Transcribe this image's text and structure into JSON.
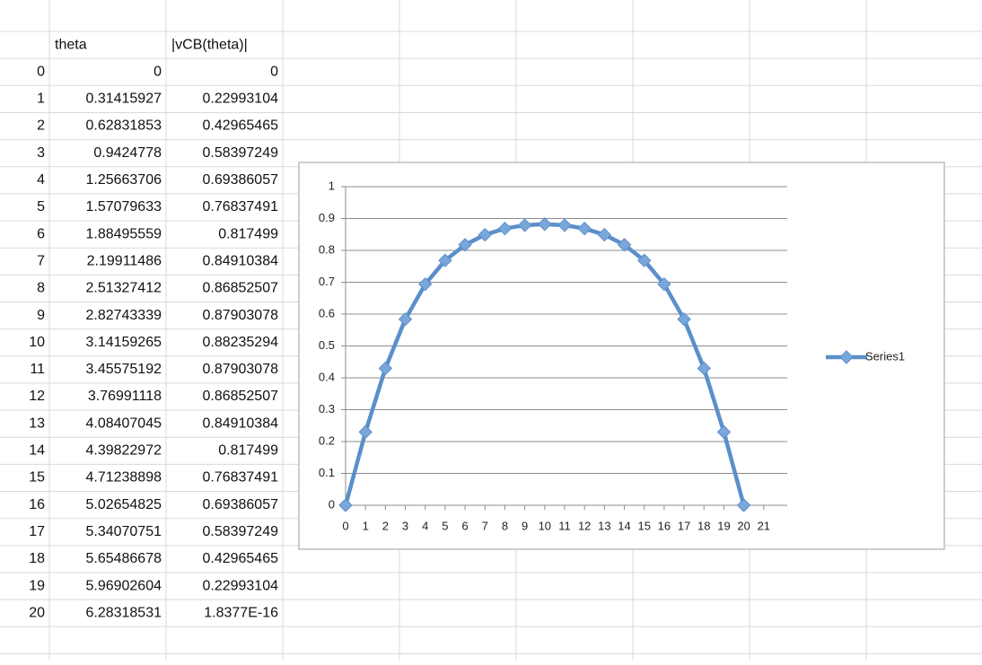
{
  "table": {
    "header": [
      "theta",
      "|vCB(theta)|"
    ],
    "rows": [
      [
        "0",
        "0",
        "0"
      ],
      [
        "1",
        "0.31415927",
        "0.22993104"
      ],
      [
        "2",
        "0.62831853",
        "0.42965465"
      ],
      [
        "3",
        "0.9424778",
        "0.58397249"
      ],
      [
        "4",
        "1.25663706",
        "0.69386057"
      ],
      [
        "5",
        "1.57079633",
        "0.76837491"
      ],
      [
        "6",
        "1.88495559",
        "0.817499"
      ],
      [
        "7",
        "2.19911486",
        "0.84910384"
      ],
      [
        "8",
        "2.51327412",
        "0.86852507"
      ],
      [
        "9",
        "2.82743339",
        "0.87903078"
      ],
      [
        "10",
        "3.14159265",
        "0.88235294"
      ],
      [
        "11",
        "3.45575192",
        "0.87903078"
      ],
      [
        "12",
        "3.76991118",
        "0.86852507"
      ],
      [
        "13",
        "4.08407045",
        "0.84910384"
      ],
      [
        "14",
        "4.39822972",
        "0.817499"
      ],
      [
        "15",
        "4.71238898",
        "0.76837491"
      ],
      [
        "16",
        "5.02654825",
        "0.69386057"
      ],
      [
        "17",
        "5.34070751",
        "0.58397249"
      ],
      [
        "18",
        "5.65486678",
        "0.42965465"
      ],
      [
        "19",
        "5.96902604",
        "0.22993104"
      ],
      [
        "20",
        "6.28318531",
        "1.8377E-16"
      ]
    ]
  },
  "chart_data": {
    "type": "line",
    "x": [
      0,
      1,
      2,
      3,
      4,
      5,
      6,
      7,
      8,
      9,
      10,
      11,
      12,
      13,
      14,
      15,
      16,
      17,
      18,
      19,
      20
    ],
    "series": [
      {
        "name": "Series1",
        "color": "#5b8fca",
        "values": [
          0,
          0.22993104,
          0.42965465,
          0.58397249,
          0.69386057,
          0.76837491,
          0.817499,
          0.84910384,
          0.86852507,
          0.87903078,
          0.88235294,
          0.87903078,
          0.86852507,
          0.84910384,
          0.817499,
          0.76837491,
          0.69386057,
          0.58397249,
          0.42965465,
          0.22993104,
          1.8377e-16
        ]
      }
    ],
    "xlim": [
      0,
      22
    ],
    "xticks": [
      0,
      1,
      2,
      3,
      4,
      5,
      6,
      7,
      8,
      9,
      10,
      11,
      12,
      13,
      14,
      15,
      16,
      17,
      18,
      19,
      20,
      21
    ],
    "ylim": [
      0,
      1
    ],
    "yticks": [
      0,
      0.1,
      0.2,
      0.3,
      0.4,
      0.5,
      0.6,
      0.7,
      0.8,
      0.9,
      1
    ],
    "grid": true,
    "legend": "right"
  }
}
